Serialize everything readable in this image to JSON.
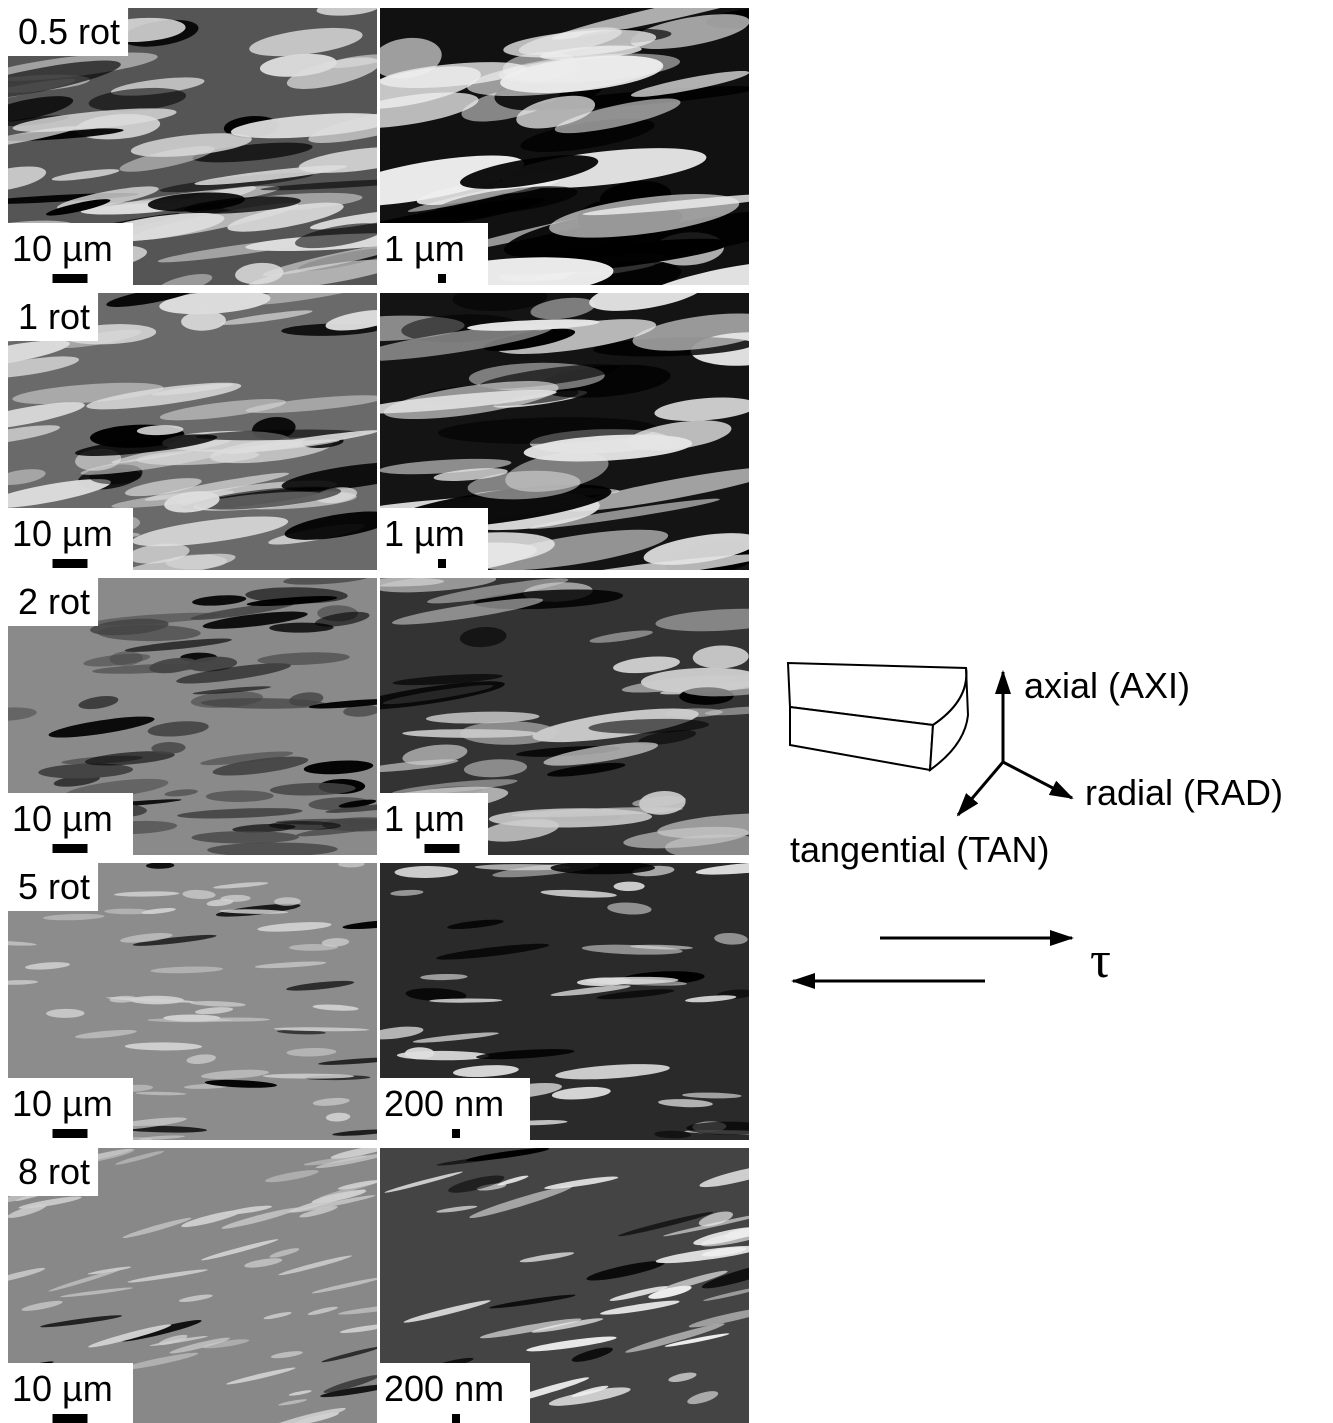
{
  "rows": [
    {
      "label": "0.5 rot",
      "left_scale": "10 µm",
      "right_scale": "1 µm"
    },
    {
      "label": "1 rot",
      "left_scale": "10 µm",
      "right_scale": "1 µm"
    },
    {
      "label": "2 rot",
      "left_scale": "10 µm",
      "right_scale": "1 µm"
    },
    {
      "label": "5 rot",
      "left_scale": "10 µm",
      "right_scale": "200 nm"
    },
    {
      "label": "8 rot",
      "left_scale": "10 µm",
      "right_scale": "200 nm"
    }
  ],
  "legend": {
    "axial": "axial (AXI)",
    "radial": "radial (RAD)",
    "tangential": "tangential (TAN)",
    "shear": "τ"
  }
}
